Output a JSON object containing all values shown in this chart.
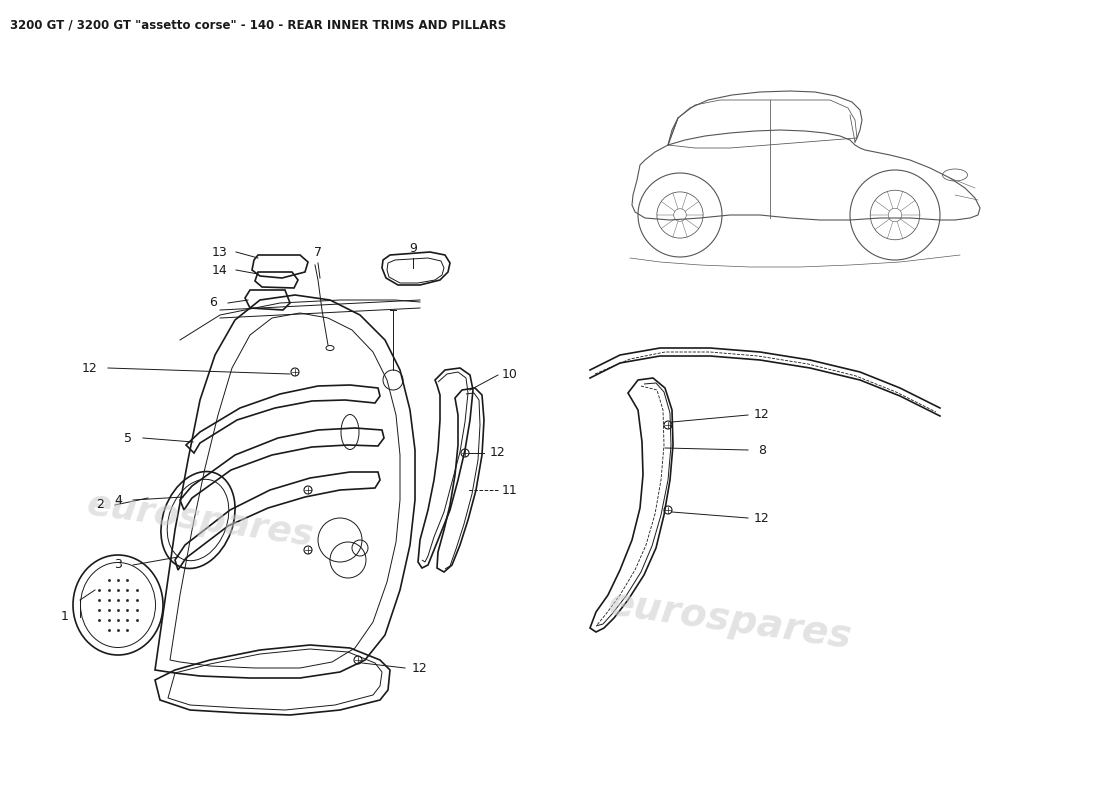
{
  "title": "3200 GT / 3200 GT \"assetto corse\" - 140 - REAR INNER TRIMS AND PILLARS",
  "title_fontsize": 8.5,
  "bg_color": "#ffffff",
  "line_color": "#1a1a1a",
  "watermark1_text": "eurospares",
  "watermark2_text": "eurospares",
  "label_fontsize": 9,
  "fig_width": 11.0,
  "fig_height": 8.0,
  "dpi": 100
}
